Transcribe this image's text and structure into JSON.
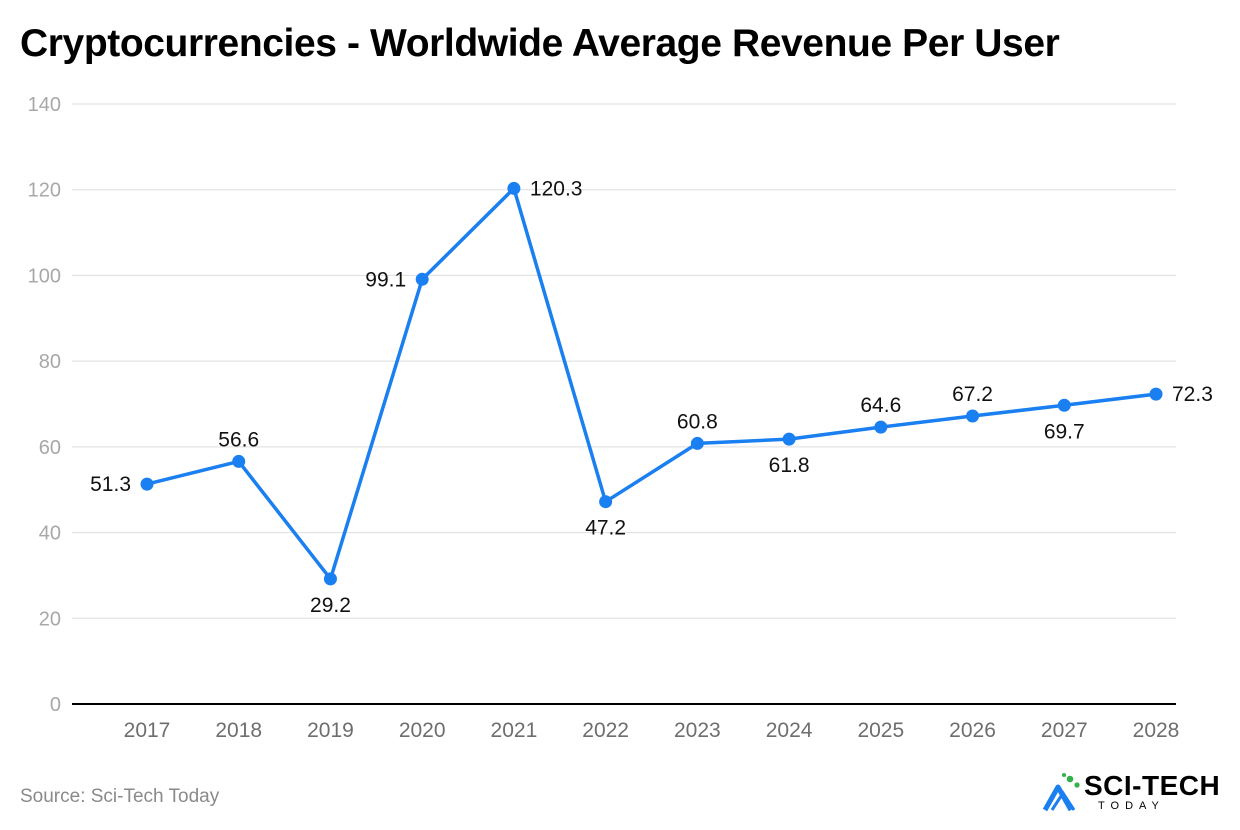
{
  "chart_data": {
    "type": "line",
    "title": "Cryptocurrencies - Worldwide Average Revenue Per User",
    "xlabel": "",
    "ylabel": "",
    "categories": [
      "2017",
      "2018",
      "2019",
      "2020",
      "2021",
      "2022",
      "2023",
      "2024",
      "2025",
      "2026",
      "2027",
      "2028"
    ],
    "series": [
      {
        "name": "Average Revenue Per User",
        "values": [
          51.3,
          56.6,
          29.2,
          99.1,
          120.3,
          47.2,
          60.8,
          61.8,
          64.6,
          67.2,
          69.7,
          72.3
        ],
        "label_positions": [
          "left",
          "above",
          "below",
          "left",
          "right",
          "below",
          "above",
          "below",
          "above",
          "above",
          "below",
          "right"
        ]
      }
    ],
    "ylim": [
      0,
      140
    ],
    "yticks": [
      "0",
      "20",
      "40",
      "60",
      "80",
      "100",
      "120",
      "140"
    ],
    "grid": true,
    "legend": "none",
    "colors": {
      "line": "#1a7ff0",
      "grid": "#dedede",
      "axis": "#000000"
    }
  },
  "source": "Source: Sci-Tech Today",
  "brand": {
    "name": "SCI-TECH",
    "sub": "TODAY",
    "colors": {
      "primary": "#1a7ff0",
      "accent": "#2fb34a"
    }
  }
}
